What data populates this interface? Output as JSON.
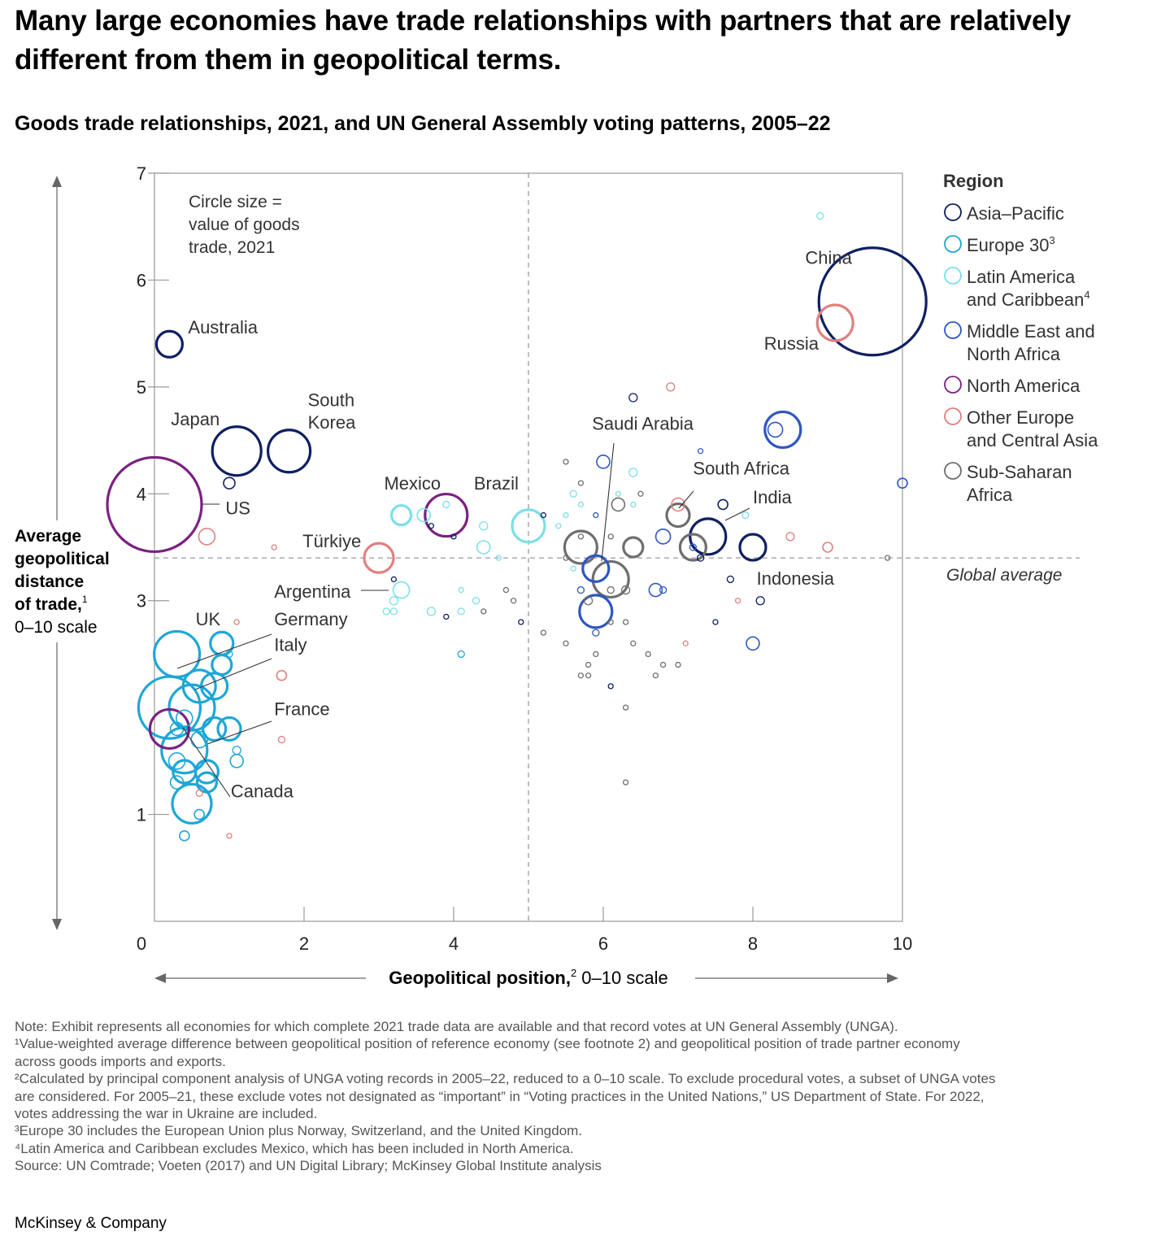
{
  "title": "Many large economies have trade relationships with partners that are relatively different from them in geopolitical terms.",
  "subtitle": "Goods trade relationships, 2021, and UN General Assembly voting patterns, 2005–22",
  "chart_data": {
    "type": "scatter",
    "xlabel": "Geopolitical position, 0–10 scale",
    "xlabel_main": "Geopolitical position,",
    "xlabel_sup": "2",
    "xlabel_rest": " 0–10 scale",
    "ylabel_lines": [
      "Average",
      "geopolitical",
      "distance",
      "of trade,"
    ],
    "ylabel_sup": "1",
    "ylabel_scale": "0–10 scale",
    "xlim": [
      0,
      10
    ],
    "ylim": [
      0,
      7
    ],
    "xticks": [
      "0",
      "2",
      "4",
      "6",
      "8",
      "10"
    ],
    "yticks": [
      "1",
      "3",
      "4",
      "5",
      "6",
      "7"
    ],
    "size_note": [
      "Circle size =",
      "value of goods",
      "trade, 2021"
    ],
    "global_average": {
      "x": 5.0,
      "y": 3.4,
      "label": "Global average"
    },
    "legend_title": "Region",
    "legend": [
      {
        "lines": [
          "Asia–Pacific"
        ],
        "sup": "",
        "color": "#0f1f63"
      },
      {
        "lines": [
          "Europe 30"
        ],
        "sup": "3",
        "color": "#1ea7d6"
      },
      {
        "lines": [
          "Latin America",
          "and Caribbean"
        ],
        "sup": "4",
        "color": "#7ddfe8"
      },
      {
        "lines": [
          "Middle East and",
          "North Africa"
        ],
        "sup": "",
        "color": "#2f56c4"
      },
      {
        "lines": [
          "North America"
        ],
        "sup": "",
        "color": "#7b2182"
      },
      {
        "lines": [
          "Other Europe",
          "and Central Asia"
        ],
        "sup": "",
        "color": "#e08080"
      },
      {
        "lines": [
          "Sub-Saharan",
          "Africa"
        ],
        "sup": "",
        "color": "#6e6e6e"
      }
    ],
    "series": [
      {
        "name": "Asia–Pacific",
        "color": "#0f1f63",
        "points": [
          [
            9.6,
            5.8,
            66
          ],
          [
            0.2,
            5.4,
            16
          ],
          [
            1.1,
            4.4,
            30
          ],
          [
            1.8,
            4.4,
            26
          ],
          [
            7.4,
            3.6,
            22
          ],
          [
            8.0,
            3.5,
            16
          ],
          [
            1.0,
            4.1,
            7
          ],
          [
            3.2,
            3.2,
            3
          ],
          [
            4.0,
            3.6,
            3
          ],
          [
            3.7,
            3.7,
            3
          ],
          [
            7.3,
            3.4,
            4
          ],
          [
            7.7,
            3.2,
            4
          ],
          [
            8.1,
            3.0,
            5
          ],
          [
            7.5,
            2.8,
            3
          ],
          [
            5.2,
            3.8,
            3
          ],
          [
            4.9,
            2.8,
            3
          ],
          [
            3.9,
            2.85,
            3
          ],
          [
            6.1,
            2.2,
            3
          ],
          [
            7.6,
            3.9,
            6
          ],
          [
            6.4,
            4.9,
            5
          ]
        ]
      },
      {
        "name": "Europe 30",
        "color": "#1ea7d6",
        "points": [
          [
            0.3,
            2.5,
            28
          ],
          [
            0.2,
            2.0,
            38
          ],
          [
            0.5,
            2.0,
            28
          ],
          [
            0.4,
            1.6,
            28
          ],
          [
            0.6,
            2.2,
            20
          ],
          [
            0.9,
            2.4,
            12
          ],
          [
            0.9,
            2.6,
            14
          ],
          [
            0.8,
            1.8,
            14
          ],
          [
            1.0,
            1.8,
            14
          ],
          [
            0.5,
            1.1,
            24
          ],
          [
            0.7,
            1.4,
            14
          ],
          [
            1.1,
            1.5,
            8
          ],
          [
            0.7,
            1.3,
            12
          ],
          [
            0.3,
            1.5,
            10
          ],
          [
            0.4,
            1.4,
            14
          ],
          [
            0.4,
            1.9,
            10
          ],
          [
            0.6,
            1.7,
            10
          ],
          [
            0.3,
            1.8,
            8
          ],
          [
            1.0,
            2.5,
            4
          ],
          [
            0.6,
            1.0,
            6
          ],
          [
            0.4,
            0.8,
            6
          ],
          [
            0.8,
            2.2,
            16
          ],
          [
            0.3,
            1.3,
            8
          ],
          [
            1.1,
            1.6,
            5
          ],
          [
            4.1,
            2.5,
            4
          ]
        ]
      },
      {
        "name": "Latin America and Caribbean",
        "color": "#7ddfe8",
        "points": [
          [
            5.0,
            3.7,
            20
          ],
          [
            3.3,
            3.1,
            10
          ],
          [
            3.3,
            3.8,
            12
          ],
          [
            3.6,
            3.8,
            8
          ],
          [
            4.4,
            3.5,
            8
          ],
          [
            4.4,
            3.7,
            5
          ],
          [
            3.9,
            3.9,
            4
          ],
          [
            3.2,
            3.0,
            5
          ],
          [
            3.2,
            2.9,
            4
          ],
          [
            3.1,
            2.9,
            4
          ],
          [
            3.7,
            2.9,
            5
          ],
          [
            4.1,
            2.9,
            4
          ],
          [
            4.3,
            3.0,
            4
          ],
          [
            4.1,
            3.1,
            3
          ],
          [
            4.6,
            3.4,
            3
          ],
          [
            5.5,
            3.8,
            3
          ],
          [
            5.4,
            3.7,
            3
          ],
          [
            5.6,
            4.0,
            4
          ],
          [
            5.7,
            3.9,
            3
          ],
          [
            6.4,
            4.2,
            5
          ],
          [
            6.2,
            4.0,
            3
          ],
          [
            6.4,
            3.9,
            3
          ],
          [
            7.9,
            3.8,
            4
          ],
          [
            8.9,
            6.6,
            4
          ],
          [
            5.6,
            3.3,
            3
          ]
        ]
      },
      {
        "name": "Middle East and North Africa",
        "color": "#2f56c4",
        "points": [
          [
            5.9,
            3.3,
            16
          ],
          [
            5.9,
            2.9,
            20
          ],
          [
            8.4,
            4.6,
            22
          ],
          [
            8.3,
            4.6,
            9
          ],
          [
            6.0,
            4.3,
            8
          ],
          [
            6.8,
            3.6,
            9
          ],
          [
            6.7,
            3.1,
            8
          ],
          [
            8.0,
            2.6,
            8
          ],
          [
            10.0,
            4.1,
            6
          ],
          [
            5.7,
            3.1,
            4
          ],
          [
            5.9,
            2.7,
            4
          ],
          [
            7.3,
            4.4,
            3
          ],
          [
            5.9,
            3.8,
            3
          ],
          [
            6.8,
            3.1,
            4
          ],
          [
            7.2,
            3.5,
            4
          ]
        ]
      },
      {
        "name": "North America",
        "color": "#7b2182",
        "points": [
          [
            0.0,
            3.9,
            58
          ],
          [
            3.9,
            3.8,
            26
          ],
          [
            0.2,
            1.8,
            24
          ]
        ]
      },
      {
        "name": "Other Europe and Central Asia",
        "color": "#e08080",
        "points": [
          [
            9.1,
            5.6,
            22
          ],
          [
            3.0,
            3.4,
            18
          ],
          [
            0.7,
            3.6,
            10
          ],
          [
            7.0,
            3.9,
            8
          ],
          [
            8.5,
            3.6,
            5
          ],
          [
            9.0,
            3.5,
            6
          ],
          [
            1.7,
            2.3,
            6
          ],
          [
            1.7,
            1.7,
            4
          ],
          [
            1.1,
            2.8,
            3
          ],
          [
            1.6,
            3.5,
            3
          ],
          [
            1.0,
            0.8,
            3
          ],
          [
            6.9,
            5.0,
            5
          ],
          [
            7.8,
            3.0,
            3
          ],
          [
            7.1,
            2.6,
            3
          ],
          [
            0.6,
            1.2,
            4
          ]
        ]
      },
      {
        "name": "Sub-Saharan Africa",
        "color": "#6e6e6e",
        "points": [
          [
            7.0,
            3.8,
            14
          ],
          [
            5.7,
            3.5,
            20
          ],
          [
            6.1,
            3.2,
            22
          ],
          [
            6.4,
            3.5,
            12
          ],
          [
            7.2,
            3.5,
            16
          ],
          [
            6.2,
            3.9,
            8
          ],
          [
            6.3,
            3.1,
            5
          ],
          [
            6.1,
            3.1,
            4
          ],
          [
            5.8,
            3.0,
            5
          ],
          [
            6.3,
            2.8,
            3
          ],
          [
            6.1,
            2.8,
            3
          ],
          [
            6.4,
            2.6,
            3
          ],
          [
            6.6,
            2.5,
            3
          ],
          [
            6.8,
            2.4,
            3
          ],
          [
            7.0,
            2.4,
            3
          ],
          [
            6.7,
            2.3,
            3
          ],
          [
            5.8,
            2.4,
            3
          ],
          [
            5.7,
            2.3,
            3
          ],
          [
            5.8,
            2.3,
            3
          ],
          [
            6.3,
            2.0,
            3
          ],
          [
            6.3,
            1.3,
            3
          ],
          [
            5.5,
            2.6,
            3
          ],
          [
            5.2,
            2.7,
            3
          ],
          [
            5.5,
            4.3,
            3
          ],
          [
            5.7,
            4.1,
            3
          ],
          [
            6.5,
            4.0,
            3
          ],
          [
            4.8,
            3.0,
            3
          ],
          [
            4.7,
            3.1,
            3
          ],
          [
            4.4,
            2.9,
            3
          ],
          [
            5.9,
            2.5,
            3
          ],
          [
            9.8,
            3.4,
            3
          ],
          [
            5.5,
            3.4,
            3
          ],
          [
            6.1,
            3.6,
            3
          ],
          [
            5.7,
            3.6,
            3
          ]
        ]
      }
    ],
    "labels": [
      {
        "text": "China",
        "x": 8.7,
        "y": 6.15
      },
      {
        "text": "Russia",
        "x": 8.15,
        "y": 5.35
      },
      {
        "text": "Australia",
        "x": 0.45,
        "y": 5.5
      },
      {
        "text": "Japan",
        "x": 0.22,
        "y": 4.64
      },
      {
        "text": "South",
        "x": 2.05,
        "y": 4.82
      },
      {
        "text": "Korea",
        "x": 2.05,
        "y": 4.61
      },
      {
        "text": "US",
        "x": 0.95,
        "y": 3.81
      },
      {
        "text": "Mexico",
        "x": 3.07,
        "y": 4.04
      },
      {
        "text": "Brazil",
        "x": 4.27,
        "y": 4.04
      },
      {
        "text": "Türkiye",
        "x": 1.98,
        "y": 3.5
      },
      {
        "text": "Argentina",
        "x": 1.6,
        "y": 3.03
      },
      {
        "text": "Saudi Arabia",
        "x": 5.85,
        "y": 4.6
      },
      {
        "text": "South Africa",
        "x": 7.2,
        "y": 4.18
      },
      {
        "text": "India",
        "x": 8.0,
        "y": 3.91
      },
      {
        "text": "Indonesia",
        "x": 8.05,
        "y": 3.15
      },
      {
        "text": "UK",
        "x": 0.55,
        "y": 2.77
      },
      {
        "text": "Germany",
        "x": 1.6,
        "y": 2.77
      },
      {
        "text": "Italy",
        "x": 1.6,
        "y": 2.53
      },
      {
        "text": "France",
        "x": 1.6,
        "y": 1.93
      },
      {
        "text": "Canada",
        "x": 1.02,
        "y": 1.16
      }
    ]
  },
  "notes": [
    " Note: Exhibit represents all economies for which complete 2021 trade data are available and that record votes at UN General Assembly (UNGA).",
    "¹Value-weighted average difference between geopolitical position of reference economy (see footnote 2) and geopolitical position of trade partner economy",
    "  across goods imports and exports.",
    "²Calculated by principal component analysis of UNGA voting records in 2005–22, reduced to a 0–10 scale. To exclude procedural votes, a subset of UNGA votes",
    "  are considered. For 2005–21, these exclude votes not designated as “important” in “Voting practices in the United Nations,” US Department of State. For 2022,",
    "  votes addressing the war in Ukraine are included.",
    "³Europe 30 includes the European Union plus Norway, Switzerland, and the United Kingdom.",
    "⁴Latin America and Caribbean excludes Mexico, which has been included in North America.",
    " Source: UN Comtrade; Voeten (2017) and UN Digital Library; McKinsey Global Institute analysis"
  ],
  "brand": "McKinsey & Company"
}
